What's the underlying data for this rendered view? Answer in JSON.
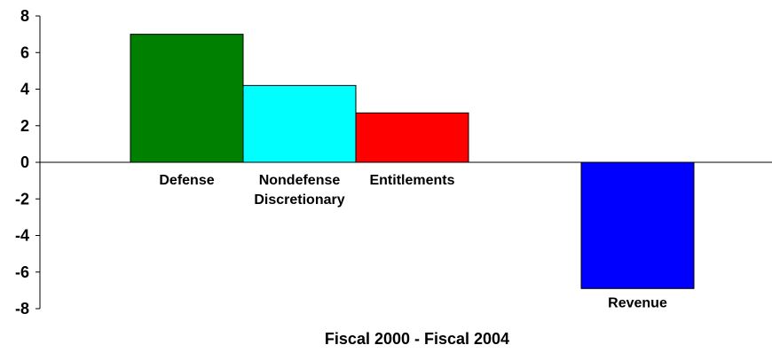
{
  "chart_data": {
    "type": "bar",
    "categories": [
      [
        "Defense"
      ],
      [
        "Nondefense",
        "Discretionary"
      ],
      [
        "Entitlements"
      ],
      [],
      [
        "Revenue"
      ]
    ],
    "values": [
      7.0,
      4.2,
      2.7,
      null,
      -6.9
    ],
    "colors": [
      "#008000",
      "#00FFFF",
      "#FF0000",
      null,
      "#0000FF"
    ],
    "xlabel": "Fiscal 2000 - Fiscal 2004",
    "ylabel": "",
    "ylim": [
      -8,
      8
    ],
    "yticks": [
      8,
      6,
      4,
      2,
      0,
      -2,
      -4,
      -6,
      -8
    ],
    "grid": false,
    "legend": "none"
  }
}
